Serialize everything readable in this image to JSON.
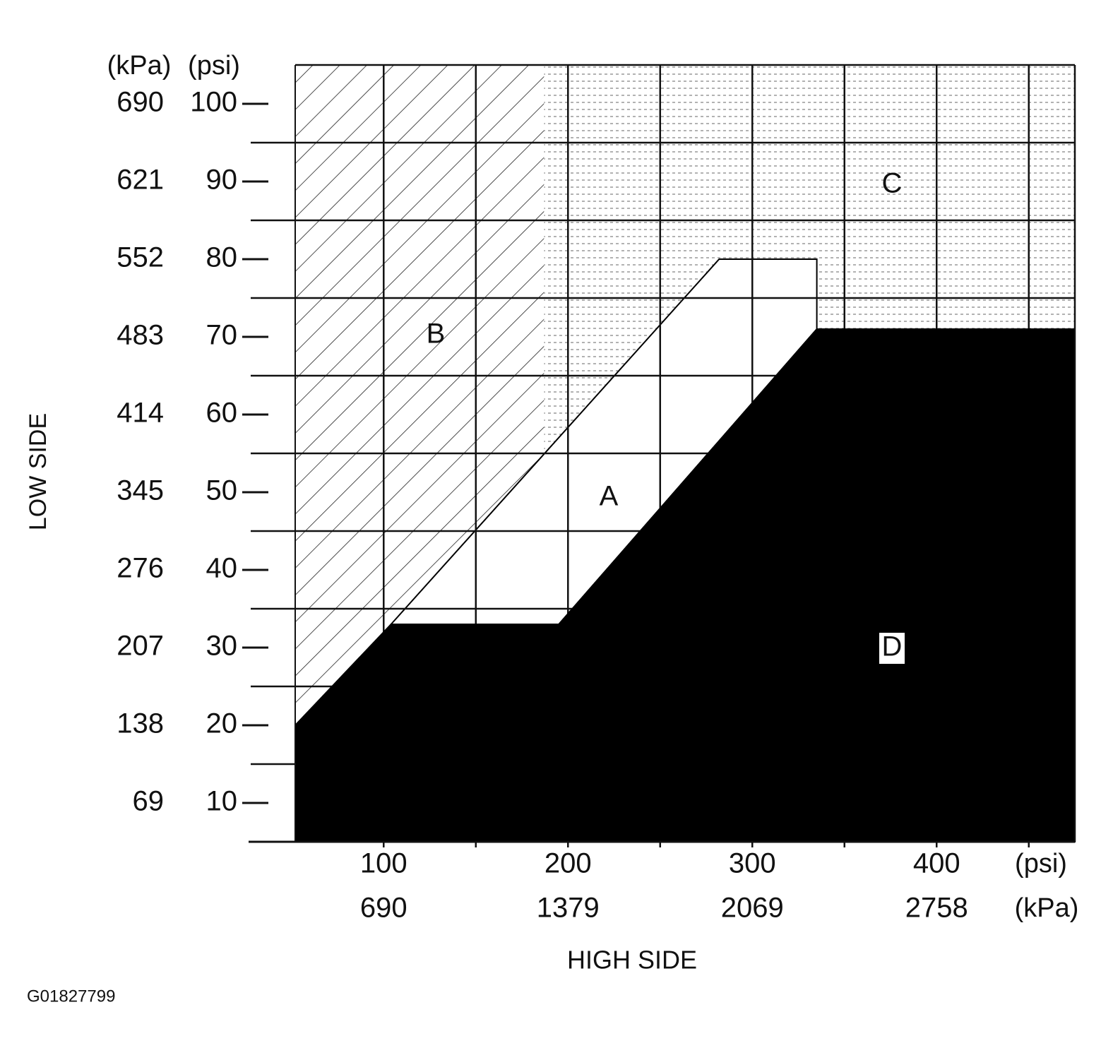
{
  "chart_data": {
    "type": "region",
    "x_label": "HIGH SIDE",
    "y_label": "LOW SIDE",
    "figure_id": "G01827799",
    "y_units": [
      "(kPa)",
      "(psi)"
    ],
    "x_units": [
      "(psi)",
      "(kPa)"
    ],
    "xlim": [
      52,
      475
    ],
    "ylim": [
      5,
      105
    ],
    "xticks": [
      100,
      200,
      300,
      400
    ],
    "xticks_kpa": [
      {
        "value": 100,
        "label": "690"
      },
      {
        "value": 200,
        "label": "1379"
      },
      {
        "value": 300,
        "label": "2069"
      },
      {
        "value": 400,
        "label": "2758"
      }
    ],
    "x_minor_ticks": [
      150,
      250,
      350,
      450
    ],
    "yticks": [
      10,
      20,
      30,
      40,
      50,
      60,
      70,
      80,
      90,
      100
    ],
    "yticks_kpa": [
      {
        "value": 10,
        "label": "69"
      },
      {
        "value": 20,
        "label": "138"
      },
      {
        "value": 30,
        "label": "207"
      },
      {
        "value": 40,
        "label": "276"
      },
      {
        "value": 50,
        "label": "345"
      },
      {
        "value": 60,
        "label": "414"
      },
      {
        "value": 70,
        "label": "483"
      },
      {
        "value": 80,
        "label": "552"
      },
      {
        "value": 90,
        "label": "621"
      },
      {
        "value": 100,
        "label": "690"
      }
    ],
    "y_minor_ticks": [
      15,
      25,
      35,
      45,
      55,
      65,
      75,
      85,
      95
    ],
    "grid": true,
    "regions": [
      {
        "name": "B",
        "x": [
          52,
          187,
          187,
          52
        ],
        "y": [
          20,
          55,
          105,
          105
        ]
      },
      {
        "name": "C",
        "x": [
          187,
          282,
          335,
          335,
          475,
          475,
          187
        ],
        "y": [
          55,
          80,
          80,
          71,
          71,
          105,
          105
        ]
      },
      {
        "name": "A",
        "x": [
          104,
          195,
          335,
          335,
          282
        ],
        "y": [
          33,
          33,
          71,
          80,
          80
        ]
      },
      {
        "name": "D",
        "x": [
          52,
          104,
          195,
          335,
          475,
          475,
          52
        ],
        "y": [
          20,
          33,
          33,
          71,
          71,
          5,
          5
        ]
      }
    ]
  }
}
